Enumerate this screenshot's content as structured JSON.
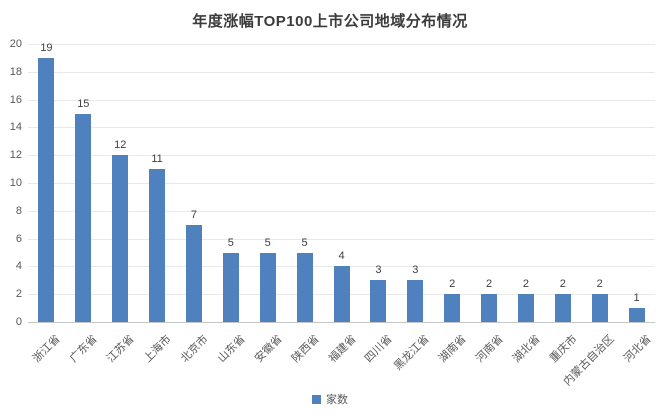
{
  "chart_data": {
    "type": "bar",
    "title": "年度涨幅TOP100上市公司地域分布情况",
    "legend": "家数",
    "legend_position": "bottom",
    "categories": [
      "浙江省",
      "广东省",
      "江苏省",
      "上海市",
      "北京市",
      "山东省",
      "安徽省",
      "陕西省",
      "福建省",
      "四川省",
      "黑龙江省",
      "湖南省",
      "河南省",
      "湖北省",
      "重庆市",
      "内蒙古自治区",
      "河北省"
    ],
    "values": [
      19,
      15,
      12,
      11,
      7,
      5,
      5,
      5,
      4,
      3,
      3,
      2,
      2,
      2,
      2,
      2,
      1
    ],
    "xlabel": "",
    "ylabel": "",
    "ylim": [
      0,
      20
    ],
    "ytick_step": 2,
    "grid": true,
    "bar_color": "#4E81BD",
    "background_color": "#FFFFFF"
  }
}
